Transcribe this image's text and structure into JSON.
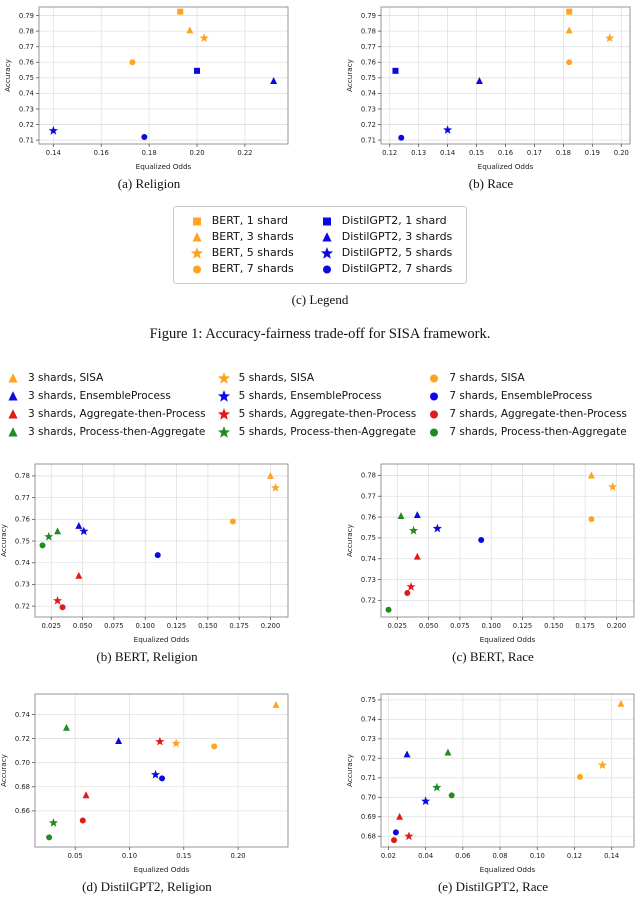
{
  "palette": {
    "orange": "#FFA421",
    "blue": "#0A0AE0",
    "red": "#E31A1A",
    "green": "#228B22"
  },
  "figure1": {
    "subcaption_a": "(a) Religion",
    "subcaption_b": "(b) Race",
    "legend": {
      "caption": "(c) Legend",
      "columns": [
        [
          {
            "label": "BERT, 1 shard",
            "marker": "square",
            "color": "orange"
          },
          {
            "label": "BERT, 3 shards",
            "marker": "triangle",
            "color": "orange"
          },
          {
            "label": "BERT, 5 shards",
            "marker": "star",
            "color": "orange"
          },
          {
            "label": "BERT, 7 shards",
            "marker": "circle",
            "color": "orange"
          }
        ],
        [
          {
            "label": "DistilGPT2, 1 shard",
            "marker": "square",
            "color": "blue"
          },
          {
            "label": "DistilGPT2, 3 shards",
            "marker": "triangle",
            "color": "blue"
          },
          {
            "label": "DistilGPT2, 5 shards",
            "marker": "star",
            "color": "blue"
          },
          {
            "label": "DistilGPT2, 7 shards",
            "marker": "circle",
            "color": "blue"
          }
        ]
      ]
    },
    "caption": "Figure 1: Accuracy-fairness trade-off for SISA framework."
  },
  "figure2": {
    "legend_columns": [
      [
        {
          "label": "3 shards, SISA",
          "marker": "triangle",
          "color": "orange"
        },
        {
          "label": "3 shards, EnsembleProcess",
          "marker": "triangle",
          "color": "blue"
        },
        {
          "label": "3 shards, Aggregate-then-Process",
          "marker": "triangle",
          "color": "red"
        },
        {
          "label": "3 shards, Process-then-Aggregate",
          "marker": "triangle",
          "color": "green"
        }
      ],
      [
        {
          "label": "5 shards, SISA",
          "marker": "star",
          "color": "orange"
        },
        {
          "label": "5 shards, EnsembleProcess",
          "marker": "star",
          "color": "blue"
        },
        {
          "label": "5 shards, Aggregate-then-Process",
          "marker": "star",
          "color": "red"
        },
        {
          "label": "5 shards, Process-then-Aggregate",
          "marker": "star",
          "color": "green"
        }
      ],
      [
        {
          "label": "7 shards, SISA",
          "marker": "circle",
          "color": "orange"
        },
        {
          "label": "7 shards, EnsembleProcess",
          "marker": "circle",
          "color": "blue"
        },
        {
          "label": "7 shards, Aggregate-then-Process",
          "marker": "circle",
          "color": "red"
        },
        {
          "label": "7 shards, Process-then-Aggregate",
          "marker": "circle",
          "color": "green"
        }
      ]
    ],
    "subcaption_b": "(b) BERT, Religion",
    "subcaption_c": "(c) BERT, Race",
    "subcaption_d": "(d) DistilGPT2, Religion",
    "subcaption_e": "(e) DistilGPT2, Race"
  },
  "chart_data": [
    {
      "id": "religion",
      "type": "scatter",
      "title": "",
      "xlabel": "Equalized Odds",
      "ylabel": "Accuracy",
      "xlim": [
        0.134,
        0.238
      ],
      "ylim": [
        0.7075,
        0.7955
      ],
      "xticks": [
        0.14,
        0.16,
        0.18,
        0.2,
        0.22
      ],
      "xtick_labels": [
        "0.14",
        "0.16",
        "0.18",
        "0.20",
        "0.22"
      ],
      "yticks": [
        0.71,
        0.72,
        0.73,
        0.74,
        0.75,
        0.76,
        0.77,
        0.78,
        0.79
      ],
      "ytick_labels": [
        "0.71",
        "0.72",
        "0.73",
        "0.74",
        "0.75",
        "0.76",
        "0.77",
        "0.78",
        "0.79"
      ],
      "points": [
        {
          "label": "BERT, 1 shard",
          "marker": "square",
          "color": "orange",
          "x": 0.193,
          "y": 0.7925
        },
        {
          "label": "BERT, 3 shards",
          "marker": "triangle",
          "color": "orange",
          "x": 0.197,
          "y": 0.7805
        },
        {
          "label": "BERT, 5 shards",
          "marker": "star",
          "color": "orange",
          "x": 0.203,
          "y": 0.7755
        },
        {
          "label": "BERT, 7 shards",
          "marker": "circle",
          "color": "orange",
          "x": 0.173,
          "y": 0.76
        },
        {
          "label": "DistilGPT2, 1 shard",
          "marker": "square",
          "color": "blue",
          "x": 0.2,
          "y": 0.7545
        },
        {
          "label": "DistilGPT2, 3 shards",
          "marker": "triangle",
          "color": "blue",
          "x": 0.232,
          "y": 0.748
        },
        {
          "label": "DistilGPT2, 5 shards",
          "marker": "star",
          "color": "blue",
          "x": 0.14,
          "y": 0.716
        },
        {
          "label": "DistilGPT2, 7 shards",
          "marker": "circle",
          "color": "blue",
          "x": 0.178,
          "y": 0.712
        }
      ]
    },
    {
      "id": "race",
      "type": "scatter",
      "title": "",
      "xlabel": "Equalized Odds",
      "ylabel": "Accuracy",
      "xlim": [
        0.117,
        0.203
      ],
      "ylim": [
        0.7075,
        0.7955
      ],
      "xticks": [
        0.12,
        0.13,
        0.14,
        0.15,
        0.16,
        0.17,
        0.18,
        0.19,
        0.2
      ],
      "xtick_labels": [
        "0.12",
        "0.13",
        "0.14",
        "0.15",
        "0.16",
        "0.17",
        "0.18",
        "0.19",
        "0.20"
      ],
      "yticks": [
        0.71,
        0.72,
        0.73,
        0.74,
        0.75,
        0.76,
        0.77,
        0.78,
        0.79
      ],
      "ytick_labels": [
        "0.71",
        "0.72",
        "0.73",
        "0.74",
        "0.75",
        "0.76",
        "0.77",
        "0.78",
        "0.79"
      ],
      "points": [
        {
          "label": "BERT, 1 shard",
          "marker": "square",
          "color": "orange",
          "x": 0.182,
          "y": 0.7925
        },
        {
          "label": "BERT, 3 shards",
          "marker": "triangle",
          "color": "orange",
          "x": 0.182,
          "y": 0.7805
        },
        {
          "label": "BERT, 5 shards",
          "marker": "star",
          "color": "orange",
          "x": 0.196,
          "y": 0.7755
        },
        {
          "label": "BERT, 7 shards",
          "marker": "circle",
          "color": "orange",
          "x": 0.182,
          "y": 0.76
        },
        {
          "label": "DistilGPT2, 1 shard",
          "marker": "square",
          "color": "blue",
          "x": 0.122,
          "y": 0.7545
        },
        {
          "label": "DistilGPT2, 3 shards",
          "marker": "triangle",
          "color": "blue",
          "x": 0.151,
          "y": 0.748
        },
        {
          "label": "DistilGPT2, 5 shards",
          "marker": "star",
          "color": "blue",
          "x": 0.14,
          "y": 0.7165
        },
        {
          "label": "DistilGPT2, 7 shards",
          "marker": "circle",
          "color": "blue",
          "x": 0.124,
          "y": 0.7115
        }
      ]
    },
    {
      "id": "bert-religion",
      "type": "scatter",
      "title": "",
      "xlabel": "Equalized Odds",
      "ylabel": "Accuracy",
      "xlim": [
        0.012,
        0.214
      ],
      "ylim": [
        0.715,
        0.7855
      ],
      "xticks": [
        0.025,
        0.05,
        0.075,
        0.1,
        0.125,
        0.15,
        0.175,
        0.2
      ],
      "xtick_labels": [
        "0.025",
        "0.050",
        "0.075",
        "0.100",
        "0.125",
        "0.150",
        "0.175",
        "0.200"
      ],
      "yticks": [
        0.72,
        0.73,
        0.74,
        0.75,
        0.76,
        0.77,
        0.78
      ],
      "ytick_labels": [
        "0.72",
        "0.73",
        "0.74",
        "0.75",
        "0.76",
        "0.77",
        "0.78"
      ],
      "points": [
        {
          "label": "3 shards, SISA",
          "marker": "triangle",
          "color": "orange",
          "x": 0.2,
          "y": 0.78
        },
        {
          "label": "5 shards, SISA",
          "marker": "star",
          "color": "orange",
          "x": 0.204,
          "y": 0.7745
        },
        {
          "label": "7 shards, SISA",
          "marker": "circle",
          "color": "orange",
          "x": 0.17,
          "y": 0.759
        },
        {
          "label": "3 shards, EnsembleProcess",
          "marker": "triangle",
          "color": "blue",
          "x": 0.047,
          "y": 0.757
        },
        {
          "label": "5 shards, EnsembleProcess",
          "marker": "star",
          "color": "blue",
          "x": 0.051,
          "y": 0.7545
        },
        {
          "label": "7 shards, EnsembleProcess",
          "marker": "circle",
          "color": "blue",
          "x": 0.11,
          "y": 0.7435
        },
        {
          "label": "3 shards, Aggregate-then-Process",
          "marker": "triangle",
          "color": "red",
          "x": 0.047,
          "y": 0.734
        },
        {
          "label": "5 shards, Aggregate-then-Process",
          "marker": "star",
          "color": "red",
          "x": 0.03,
          "y": 0.7225
        },
        {
          "label": "7 shards, Aggregate-then-Process",
          "marker": "circle",
          "color": "red",
          "x": 0.034,
          "y": 0.7195
        },
        {
          "label": "3 shards, Process-then-Aggregate",
          "marker": "triangle",
          "color": "green",
          "x": 0.03,
          "y": 0.7545
        },
        {
          "label": "5 shards, Process-then-Aggregate",
          "marker": "star",
          "color": "green",
          "x": 0.023,
          "y": 0.752
        },
        {
          "label": "7 shards, Process-then-Aggregate",
          "marker": "circle",
          "color": "green",
          "x": 0.018,
          "y": 0.748
        }
      ]
    },
    {
      "id": "bert-race",
      "type": "scatter",
      "title": "",
      "xlabel": "Equalized Odds",
      "ylabel": "Accuracy",
      "xlim": [
        0.012,
        0.214
      ],
      "ylim": [
        0.712,
        0.7855
      ],
      "xticks": [
        0.025,
        0.05,
        0.075,
        0.1,
        0.125,
        0.15,
        0.175,
        0.2
      ],
      "xtick_labels": [
        "0.025",
        "0.050",
        "0.075",
        "0.100",
        "0.125",
        "0.150",
        "0.175",
        "0.200"
      ],
      "yticks": [
        0.72,
        0.73,
        0.74,
        0.75,
        0.76,
        0.77,
        0.78
      ],
      "ytick_labels": [
        "0.72",
        "0.73",
        "0.74",
        "0.75",
        "0.76",
        "0.77",
        "0.78"
      ],
      "points": [
        {
          "label": "3 shards, SISA",
          "marker": "triangle",
          "color": "orange",
          "x": 0.18,
          "y": 0.78
        },
        {
          "label": "5 shards, SISA",
          "marker": "star",
          "color": "orange",
          "x": 0.197,
          "y": 0.7745
        },
        {
          "label": "7 shards, SISA",
          "marker": "circle",
          "color": "orange",
          "x": 0.18,
          "y": 0.759
        },
        {
          "label": "3 shards, EnsembleProcess",
          "marker": "triangle",
          "color": "blue",
          "x": 0.041,
          "y": 0.761
        },
        {
          "label": "5 shards, EnsembleProcess",
          "marker": "star",
          "color": "blue",
          "x": 0.057,
          "y": 0.7545
        },
        {
          "label": "7 shards, EnsembleProcess",
          "marker": "circle",
          "color": "blue",
          "x": 0.092,
          "y": 0.749
        },
        {
          "label": "3 shards, Aggregate-then-Process",
          "marker": "triangle",
          "color": "red",
          "x": 0.041,
          "y": 0.741
        },
        {
          "label": "5 shards, Aggregate-then-Process",
          "marker": "star",
          "color": "red",
          "x": 0.036,
          "y": 0.7265
        },
        {
          "label": "7 shards, Aggregate-then-Process",
          "marker": "circle",
          "color": "red",
          "x": 0.033,
          "y": 0.7235
        },
        {
          "label": "3 shards, Process-then-Aggregate",
          "marker": "triangle",
          "color": "green",
          "x": 0.028,
          "y": 0.7605
        },
        {
          "label": "5 shards, Process-then-Aggregate",
          "marker": "star",
          "color": "green",
          "x": 0.038,
          "y": 0.7535
        },
        {
          "label": "7 shards, Process-then-Aggregate",
          "marker": "circle",
          "color": "green",
          "x": 0.018,
          "y": 0.7155
        }
      ]
    },
    {
      "id": "distilgpt2-religion",
      "type": "scatter",
      "title": "",
      "xlabel": "Equalized Odds",
      "ylabel": "Accuracy",
      "xlim": [
        0.013,
        0.246
      ],
      "ylim": [
        0.63,
        0.757
      ],
      "xticks": [
        0.05,
        0.1,
        0.15,
        0.2
      ],
      "xtick_labels": [
        "0.05",
        "0.10",
        "0.15",
        "0.20"
      ],
      "yticks": [
        0.66,
        0.68,
        0.7,
        0.72,
        0.74
      ],
      "ytick_labels": [
        "0.66",
        "0.68",
        "0.70",
        "0.72",
        "0.74"
      ],
      "points": [
        {
          "label": "3 shards, SISA",
          "marker": "triangle",
          "color": "orange",
          "x": 0.235,
          "y": 0.748
        },
        {
          "label": "5 shards, SISA",
          "marker": "star",
          "color": "orange",
          "x": 0.143,
          "y": 0.716
        },
        {
          "label": "7 shards, SISA",
          "marker": "circle",
          "color": "orange",
          "x": 0.178,
          "y": 0.7135
        },
        {
          "label": "3 shards, EnsembleProcess",
          "marker": "triangle",
          "color": "blue",
          "x": 0.09,
          "y": 0.718
        },
        {
          "label": "5 shards, EnsembleProcess",
          "marker": "star",
          "color": "blue",
          "x": 0.124,
          "y": 0.69
        },
        {
          "label": "7 shards, EnsembleProcess",
          "marker": "circle",
          "color": "blue",
          "x": 0.13,
          "y": 0.687
        },
        {
          "label": "3 shards, Aggregate-then-Process",
          "marker": "triangle",
          "color": "red",
          "x": 0.06,
          "y": 0.673
        },
        {
          "label": "5 shards, Aggregate-then-Process",
          "marker": "star",
          "color": "red",
          "x": 0.128,
          "y": 0.7175
        },
        {
          "label": "7 shards, Aggregate-then-Process",
          "marker": "circle",
          "color": "red",
          "x": 0.057,
          "y": 0.652
        },
        {
          "label": "3 shards, Process-then-Aggregate",
          "marker": "triangle",
          "color": "green",
          "x": 0.042,
          "y": 0.729
        },
        {
          "label": "5 shards, Process-then-Aggregate",
          "marker": "star",
          "color": "green",
          "x": 0.03,
          "y": 0.65
        },
        {
          "label": "7 shards, Process-then-Aggregate",
          "marker": "circle",
          "color": "green",
          "x": 0.026,
          "y": 0.638
        }
      ]
    },
    {
      "id": "distilgpt2-race",
      "type": "scatter",
      "title": "",
      "xlabel": "Equalized Odds",
      "ylabel": "Accuracy",
      "xlim": [
        0.016,
        0.152
      ],
      "ylim": [
        0.6745,
        0.753
      ],
      "xticks": [
        0.02,
        0.04,
        0.06,
        0.08,
        0.1,
        0.12,
        0.14
      ],
      "xtick_labels": [
        "0.02",
        "0.04",
        "0.06",
        "0.08",
        "0.10",
        "0.12",
        "0.14"
      ],
      "yticks": [
        0.68,
        0.69,
        0.7,
        0.71,
        0.72,
        0.73,
        0.74,
        0.75
      ],
      "ytick_labels": [
        "0.68",
        "0.69",
        "0.70",
        "0.71",
        "0.72",
        "0.73",
        "0.74",
        "0.75"
      ],
      "points": [
        {
          "label": "3 shards, SISA",
          "marker": "triangle",
          "color": "orange",
          "x": 0.145,
          "y": 0.748
        },
        {
          "label": "5 shards, SISA",
          "marker": "star",
          "color": "orange",
          "x": 0.135,
          "y": 0.7165
        },
        {
          "label": "7 shards, SISA",
          "marker": "circle",
          "color": "orange",
          "x": 0.123,
          "y": 0.7105
        },
        {
          "label": "3 shards, EnsembleProcess",
          "marker": "triangle",
          "color": "blue",
          "x": 0.03,
          "y": 0.722
        },
        {
          "label": "5 shards, EnsembleProcess",
          "marker": "star",
          "color": "blue",
          "x": 0.04,
          "y": 0.698
        },
        {
          "label": "7 shards, EnsembleProcess",
          "marker": "circle",
          "color": "blue",
          "x": 0.024,
          "y": 0.682
        },
        {
          "label": "3 shards, Aggregate-then-Process",
          "marker": "triangle",
          "color": "red",
          "x": 0.026,
          "y": 0.69
        },
        {
          "label": "5 shards, Aggregate-then-Process",
          "marker": "star",
          "color": "red",
          "x": 0.031,
          "y": 0.68
        },
        {
          "label": "7 shards, Aggregate-then-Process",
          "marker": "circle",
          "color": "red",
          "x": 0.023,
          "y": 0.678
        },
        {
          "label": "3 shards, Process-then-Aggregate",
          "marker": "triangle",
          "color": "green",
          "x": 0.052,
          "y": 0.723
        },
        {
          "label": "5 shards, Process-then-Aggregate",
          "marker": "star",
          "color": "green",
          "x": 0.046,
          "y": 0.705
        },
        {
          "label": "7 shards, Process-then-Aggregate",
          "marker": "circle",
          "color": "green",
          "x": 0.054,
          "y": 0.701
        }
      ]
    }
  ]
}
